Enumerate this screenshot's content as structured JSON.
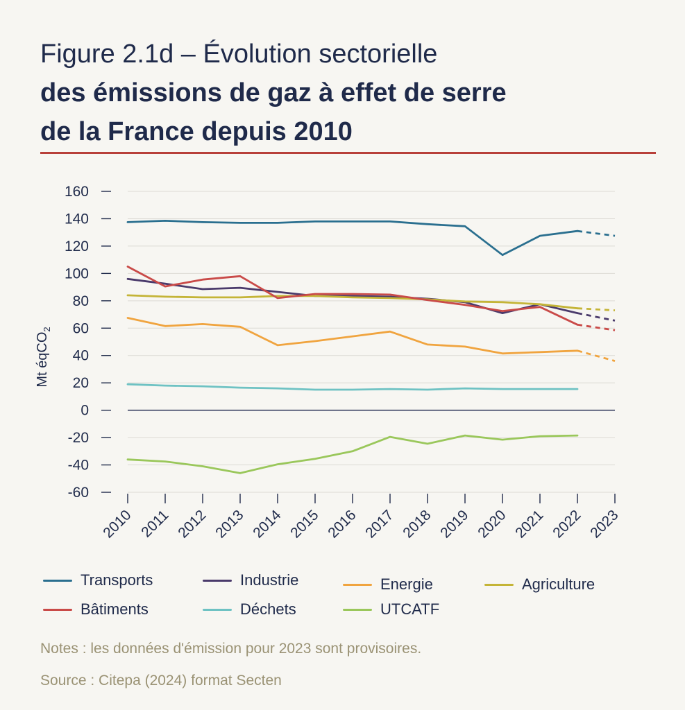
{
  "title": {
    "line1": "Figure 2.1d – Évolution sectorielle",
    "line2": "des émissions de gaz à effet de serre",
    "line3": "de la France depuis 2010"
  },
  "notes": "Notes : les données d'émission pour 2023 sont provisoires.",
  "source": "Source : Citepa (2024) format Secten",
  "chart_data": {
    "type": "line",
    "title": "Évolution sectorielle des émissions de gaz à effet de serre de la France depuis 2010",
    "xlabel": "",
    "ylabel": "Mt éqCO₂",
    "ylabel_main": "Mt éqCO",
    "ylabel_sub": "2",
    "ylim": [
      -60,
      160
    ],
    "yticks": [
      160,
      140,
      120,
      100,
      80,
      60,
      40,
      20,
      0,
      -20,
      -40,
      -60
    ],
    "x": [
      "2010",
      "2011",
      "2012",
      "2013",
      "2014",
      "2015",
      "2016",
      "2017",
      "2018",
      "2019",
      "2020",
      "2021",
      "2022",
      "2023"
    ],
    "provisional_from": "2022",
    "grid": true,
    "series": [
      {
        "name": "Transports",
        "color": "#2a6f8f",
        "values": [
          137.5,
          138.5,
          137.5,
          137,
          137,
          138,
          138,
          138,
          136,
          134.5,
          113.5,
          127.5,
          131,
          127.5
        ]
      },
      {
        "name": "Industrie",
        "color": "#4a3a6b",
        "values": [
          96,
          92.5,
          88.5,
          89.5,
          86.5,
          83.5,
          83.5,
          83,
          81.5,
          79,
          71,
          77.5,
          71,
          65.5
        ]
      },
      {
        "name": "Energie",
        "color": "#f0a43f",
        "values": [
          67.5,
          61.5,
          63,
          61,
          47.5,
          50.5,
          54,
          57.5,
          48,
          46.5,
          41.5,
          42.5,
          43.5,
          36
        ]
      },
      {
        "name": "Agriculture",
        "color": "#c4b437",
        "values": [
          84,
          83,
          82.5,
          82.5,
          83.5,
          83.5,
          82.5,
          82,
          81,
          79.5,
          79,
          77.5,
          74.5,
          73
        ]
      },
      {
        "name": "Bâtiments",
        "color": "#c94a48",
        "values": [
          105,
          90.5,
          95.5,
          98,
          82,
          85,
          85,
          84.5,
          80.5,
          77,
          72.5,
          75.5,
          62.5,
          58.5
        ]
      },
      {
        "name": "Déchets",
        "color": "#6ec2c3",
        "values": [
          19,
          18,
          17.5,
          16.5,
          16,
          15,
          15,
          15.5,
          15,
          16,
          15.5,
          15.5,
          15.5,
          null
        ]
      },
      {
        "name": "UTCATF",
        "color": "#9ac75b",
        "values": [
          -36,
          -37.5,
          -41,
          -46,
          -39.5,
          -35.5,
          -30,
          -19.5,
          -24.5,
          -18.5,
          -21.5,
          -19,
          -18.5,
          null
        ]
      }
    ]
  }
}
